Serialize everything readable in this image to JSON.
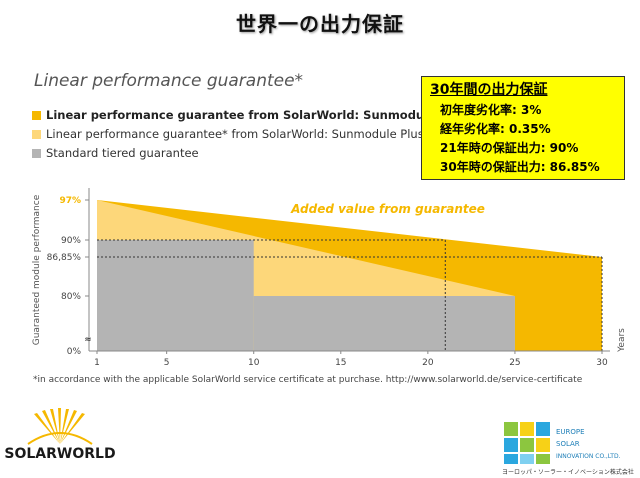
{
  "slide_title": "世界一の出力保証",
  "chart_heading": "Linear performance guarantee*",
  "legend": [
    {
      "label": "Linear performance guarantee from SolarWorld: Sunmodule Protect",
      "color": "#f5b800"
    },
    {
      "label": "Linear performance guarantee* from SolarWorld: Sunmodule Plus",
      "color": "#fdd77a"
    },
    {
      "label": "Standard tiered guarantee",
      "color": "#b4b4b4"
    }
  ],
  "info_box": {
    "title": "30年間の出力保証",
    "lines": [
      "初年度劣化率: 3%",
      "経年劣化率: 0.35%",
      "21年時の保証出力: 90%",
      "30年時の保証出力: 86.85%"
    ]
  },
  "chart_data": {
    "type": "area",
    "xlabel": "Years",
    "ylabel": "Guaranteed module performance",
    "xlim": [
      1,
      30
    ],
    "x_ticks": [
      "1",
      "5",
      "10",
      "15",
      "20",
      "25",
      "30"
    ],
    "y_ticks": [
      "97%",
      "90%",
      "86,85%",
      "80%",
      "0%"
    ],
    "annotation": "Added value from guarantee",
    "series": [
      {
        "name": "Linear performance guarantee from SolarWorld: Sunmodule Protect",
        "points": [
          [
            1,
            97
          ],
          [
            30,
            86.85
          ]
        ],
        "color": "#f5b800"
      },
      {
        "name": "Linear performance guarantee* from SolarWorld: Sunmodule Plus",
        "points": [
          [
            1,
            97
          ],
          [
            25,
            80
          ]
        ],
        "color": "#fdd77a"
      },
      {
        "name": "Standard tiered guarantee",
        "steps": [
          {
            "from": 1,
            "to": 10,
            "value": 90
          },
          {
            "from": 10,
            "to": 25,
            "value": 80
          }
        ],
        "color": "#b4b4b4"
      }
    ],
    "reference_lines": [
      {
        "x": 21,
        "y": 90,
        "style": "dotted"
      },
      {
        "x": 30,
        "y": 86.85,
        "style": "dotted"
      }
    ],
    "grid": false
  },
  "footnote": "*in accordance with the applicable SolarWorld service certificate at purchase. http://www.solarworld.de/service-certificate",
  "logos": {
    "solarworld": "SOLARWORLD",
    "esi_lines": [
      "EUROPE",
      "SOLAR",
      "INNOVATION CO.,LTD."
    ],
    "esi_subtitle": "ヨーロッパ・ソーラー・イノベーション株式会社"
  },
  "colors": {
    "protect": "#f5b800",
    "plus": "#fdd77a",
    "standard": "#b4b4b4",
    "info_box": "#ffff00"
  }
}
